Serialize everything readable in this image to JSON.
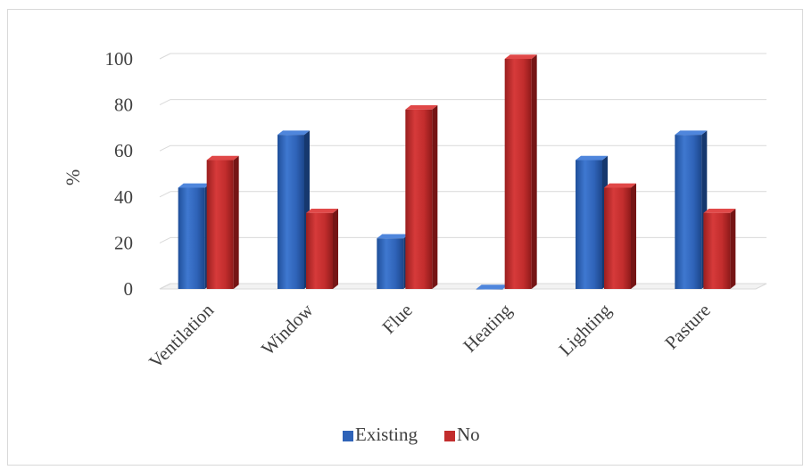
{
  "chart_data": {
    "type": "bar",
    "title": "",
    "xlabel": "",
    "ylabel": "%",
    "ylim": [
      0,
      100
    ],
    "yticks": [
      0,
      20,
      40,
      60,
      80,
      100
    ],
    "grid": true,
    "legend_position": "bottom",
    "categories": [
      "Ventilation",
      "Window",
      "Flue",
      "Heating",
      "Lighting",
      "Pasture"
    ],
    "series": [
      {
        "name": "Existing",
        "color": "#3366cc",
        "values": [
          44,
          67,
          22,
          0,
          56,
          67
        ]
      },
      {
        "name": "No",
        "color": "#cc3333",
        "values": [
          56,
          33,
          78,
          100,
          44,
          33
        ]
      }
    ]
  }
}
